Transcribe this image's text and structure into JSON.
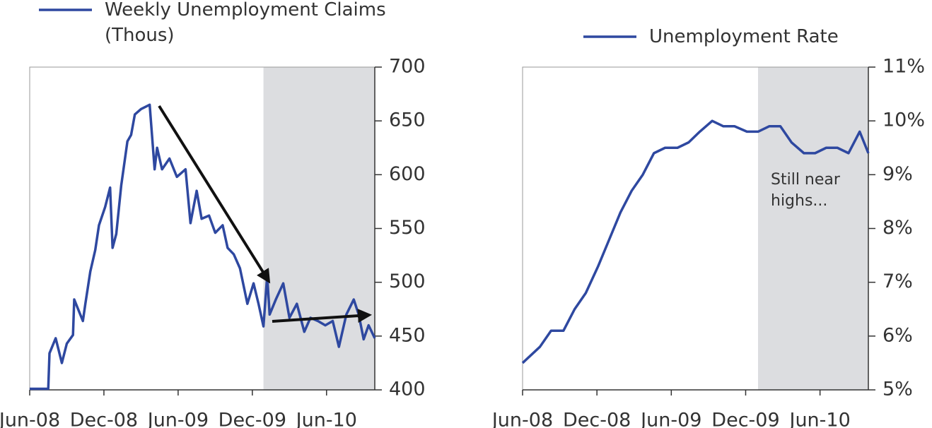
{
  "chart_data": [
    {
      "type": "line",
      "x": [
        0,
        1.5,
        1.6,
        2.1,
        2.6,
        3.0,
        3.5,
        3.6,
        4.3,
        4.5,
        4.9,
        5.3,
        5.6,
        6.1,
        6.5,
        6.7,
        7.0,
        7.4,
        7.9,
        8.2,
        8.5,
        9.0,
        9.7,
        10.1,
        10.3,
        10.7,
        11.3,
        11.9,
        12.6,
        13.0,
        13.5,
        13.9,
        14.5,
        15.0,
        15.6,
        16.0,
        16.5,
        17.0,
        17.6,
        18.1,
        18.5,
        18.9,
        19.2,
        19.4,
        19.9,
        20.5,
        21.0,
        21.6,
        22.2,
        22.7,
        23.3,
        23.9,
        24.5,
        25.0,
        25.6,
        26.2,
        26.6,
        27.0,
        27.4,
        27.9
      ],
      "series": [
        {
          "name": "Weekly Unemployment Claims (Thous)",
          "color": "#2e48a0",
          "values": [
            401,
            401,
            434,
            448,
            425,
            443,
            451,
            484,
            464,
            480,
            510,
            530,
            553,
            570,
            588,
            532,
            545,
            590,
            631,
            637,
            656,
            661,
            665,
            605,
            625,
            605,
            615,
            598,
            605,
            555,
            585,
            559,
            562,
            546,
            553,
            532,
            526,
            513,
            480,
            499,
            480,
            459,
            506,
            470,
            484,
            499,
            467,
            480,
            454,
            467,
            464,
            460,
            464,
            440,
            470,
            484,
            470,
            447,
            460,
            448
          ]
        }
      ],
      "xlim": [
        0,
        27.9
      ],
      "xticks": [
        {
          "value": 0,
          "label": "Jun-08"
        },
        {
          "value": 6,
          "label": "Dec-08"
        },
        {
          "value": 12,
          "label": "Jun-09"
        },
        {
          "value": 18,
          "label": "Dec-09"
        },
        {
          "value": 24,
          "label": "Jun-10"
        }
      ],
      "ylim": [
        400,
        700
      ],
      "yticks": [
        400,
        450,
        500,
        550,
        600,
        650,
        700
      ],
      "shaded_xrange": [
        18.9,
        27.9
      ],
      "shade_color": "#dcdde0"
    },
    {
      "type": "line",
      "x": [
        0,
        1.4,
        2.3,
        3.3,
        4.2,
        5.1,
        6.1,
        7.0,
        7.9,
        8.8,
        9.7,
        10.6,
        11.5,
        12.5,
        13.4,
        14.3,
        15.3,
        16.2,
        17.1,
        18.1,
        19.0,
        19.9,
        20.8,
        21.7,
        22.7,
        23.6,
        24.5,
        25.4,
        26.3,
        27.2,
        27.9
      ],
      "series": [
        {
          "name": "Unemployment Rate",
          "color": "#2e48a0",
          "values": [
            5.5,
            5.8,
            6.1,
            6.1,
            6.5,
            6.8,
            7.3,
            7.8,
            8.3,
            8.7,
            9.0,
            9.4,
            9.5,
            9.5,
            9.6,
            9.8,
            10.0,
            9.9,
            9.9,
            9.8,
            9.8,
            9.9,
            9.9,
            9.6,
            9.4,
            9.4,
            9.5,
            9.5,
            9.4,
            9.8,
            9.4
          ]
        }
      ],
      "xlim": [
        0,
        27.9
      ],
      "xticks": [
        {
          "value": 0,
          "label": "Jun-08"
        },
        {
          "value": 6,
          "label": "Dec-08"
        },
        {
          "value": 12,
          "label": "Jun-09"
        },
        {
          "value": 18,
          "label": "Dec-09"
        },
        {
          "value": 24,
          "label": "Jun-10"
        }
      ],
      "ylim": [
        5,
        11
      ],
      "yticks": [
        {
          "value": 5,
          "label": "5%"
        },
        {
          "value": 6,
          "label": "6%"
        },
        {
          "value": 7,
          "label": "7%"
        },
        {
          "value": 8,
          "label": "8%"
        },
        {
          "value": 9,
          "label": "9%"
        },
        {
          "value": 10,
          "label": "10%"
        },
        {
          "value": 11,
          "label": "11%"
        }
      ],
      "shaded_xrange": [
        19.0,
        27.9
      ],
      "shade_color": "#dcdde0",
      "annotation": "Still near highs..."
    }
  ]
}
